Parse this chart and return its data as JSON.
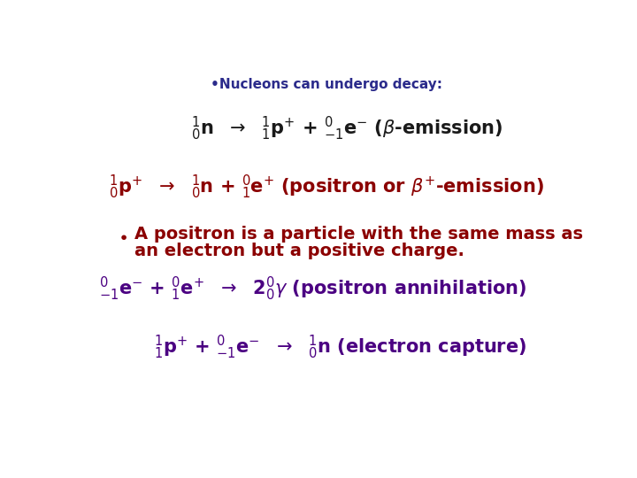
{
  "background_color": "#ffffff",
  "title": "•Nucleons can undergo decay:",
  "title_color": "#2b2b8b",
  "title_fontsize": 11,
  "black_color": "#1a1a1a",
  "red_color": "#8b0000",
  "purple_color": "#4b0082",
  "figsize": [
    7.2,
    5.4
  ],
  "dpi": 100,
  "eq_fontsize": 15,
  "text_fontsize": 14
}
